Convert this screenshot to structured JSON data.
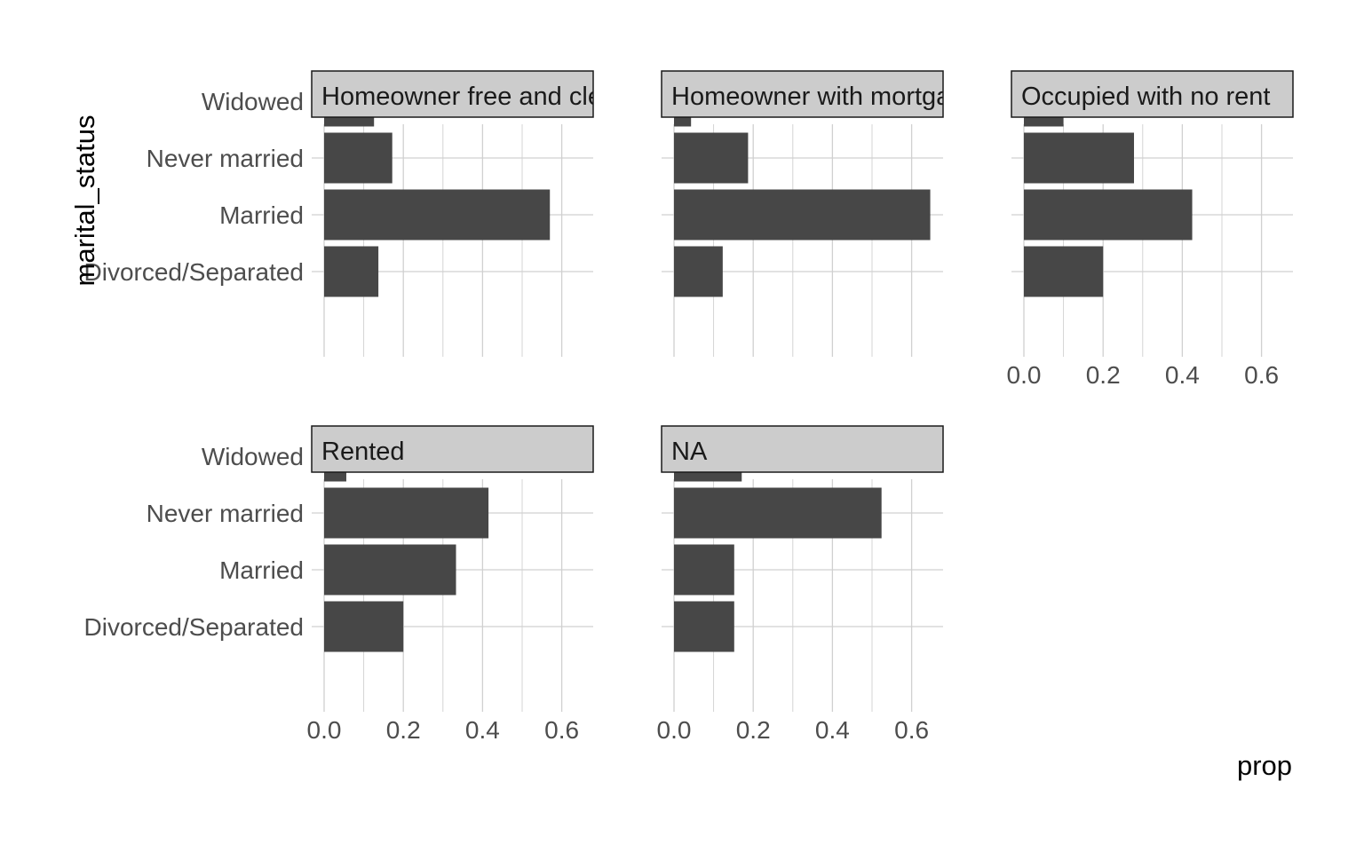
{
  "chart_data": {
    "type": "bar",
    "orientation": "horizontal",
    "facet_by": "",
    "xlabel": "prop",
    "ylabel": "marital_status",
    "categories": [
      "Divorced/Separated",
      "Married",
      "Never married",
      "Widowed"
    ],
    "xlim": [
      0,
      0.68
    ],
    "x_ticks": [
      "0.0",
      "0.2",
      "0.4",
      "0.6"
    ],
    "grid": true,
    "colors": {
      "bar": "#474747",
      "grid": "#d0d0d0",
      "strip_fill": "#cccccc",
      "strip_border": "#1a1a1a"
    },
    "panels": [
      {
        "title": "Homeowner free and clear",
        "values": [
          0.137,
          0.57,
          0.172,
          0.126
        ]
      },
      {
        "title": "Homeowner with mortgage",
        "values": [
          0.123,
          0.647,
          0.187,
          0.043
        ]
      },
      {
        "title": "Occupied with no rent",
        "values": [
          0.2,
          0.425,
          0.278,
          0.1
        ]
      },
      {
        "title": "Rented",
        "values": [
          0.2,
          0.333,
          0.415,
          0.056
        ]
      },
      {
        "title": "NA",
        "values": [
          0.152,
          0.152,
          0.524,
          0.171
        ]
      }
    ]
  }
}
